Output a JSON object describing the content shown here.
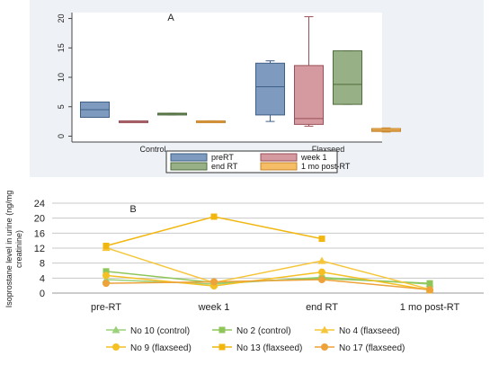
{
  "chart_data": [
    {
      "type": "box",
      "panel_label": "A",
      "categories": [
        "Control",
        "Flaxseed"
      ],
      "yticks": [
        0,
        5,
        10,
        15,
        20
      ],
      "ylim": [
        -1,
        21
      ],
      "grid": false,
      "legend_position": "bottom",
      "series": [
        {
          "name": "preRT",
          "color": "#7e9bbf",
          "stroke": "#3f5f86",
          "boxes": [
            {
              "min": 3.2,
              "q1": 3.2,
              "median": 4.5,
              "q3": 5.8,
              "max": 5.8
            },
            {
              "min": 2.5,
              "q1": 3.6,
              "median": 8.4,
              "q3": 12.4,
              "max": 12.8
            }
          ]
        },
        {
          "name": "week 1",
          "color": "#d59aa0",
          "stroke": "#9a4f57",
          "boxes": [
            {
              "min": 2.4,
              "q1": 2.4,
              "median": 2.5,
              "q3": 2.6,
              "max": 2.6
            },
            {
              "min": 1.7,
              "q1": 2.0,
              "median": 3.0,
              "q3": 12.0,
              "max": 20.3
            }
          ]
        },
        {
          "name": "end RT",
          "color": "#97b086",
          "stroke": "#4f6c3d",
          "boxes": [
            {
              "min": 3.6,
              "q1": 3.6,
              "median": 3.8,
              "q3": 3.9,
              "max": 3.9
            },
            {
              "min": 5.4,
              "q1": 5.4,
              "median": 8.8,
              "q3": 14.5,
              "max": 14.5
            }
          ]
        },
        {
          "name": "1 mo post-RT",
          "color": "#f4bd66",
          "stroke": "#c8862c",
          "boxes": [
            {
              "min": 2.4,
              "q1": 2.4,
              "median": 2.5,
              "q3": 2.6,
              "max": 2.6
            },
            {
              "min": 0.7,
              "q1": 0.8,
              "median": 1.0,
              "q3": 1.3,
              "max": 1.4
            }
          ]
        }
      ]
    },
    {
      "type": "line",
      "panel_label": "B",
      "ylabel": "Isoprostane level in urine (ng/mg creatinine)",
      "categories": [
        "pre-RT",
        "week 1",
        "end RT",
        "1 mo post-RT"
      ],
      "yticks": [
        0,
        4,
        8,
        12,
        16,
        20,
        24
      ],
      "ylim": [
        0,
        24
      ],
      "grid": true,
      "legend_position": "bottom",
      "series": [
        {
          "name": "No 10 (control)",
          "color": "#9bd17a",
          "marker": "triangle",
          "values": [
            3.6,
            2.4,
            4.2,
            2.4
          ]
        },
        {
          "name": "No 2 (control)",
          "color": "#8fc65a",
          "marker": "square",
          "values": [
            5.8,
            2.8,
            3.9,
            2.6
          ]
        },
        {
          "name": "No 4 (flaxseed)",
          "color": "#f6c63a",
          "marker": "triangle",
          "values": [
            12.1,
            2.8,
            8.6,
            1.0
          ]
        },
        {
          "name": "No 9 (flaxseed)",
          "color": "#f4c023",
          "marker": "circle",
          "values": [
            4.7,
            1.9,
            5.6,
            0.8
          ]
        },
        {
          "name": "No 13 (flaxseed)",
          "color": "#f1b70f",
          "marker": "square",
          "values": [
            12.6,
            20.4,
            14.5,
            null
          ]
        },
        {
          "name": "No 17 (flaxseed)",
          "color": "#eda23a",
          "marker": "circle",
          "values": [
            2.6,
            3.0,
            3.6,
            0.9
          ]
        }
      ]
    }
  ]
}
